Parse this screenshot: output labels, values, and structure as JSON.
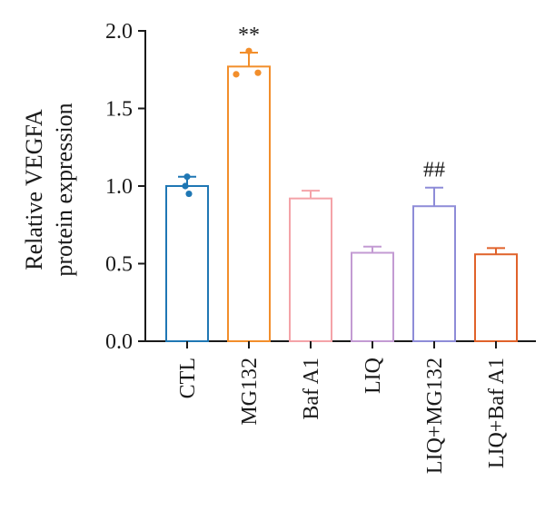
{
  "chart_data": {
    "type": "bar",
    "ylabel_lines": [
      "Relative VEGFA",
      "protein expression"
    ],
    "ylim": [
      0,
      2.0
    ],
    "yticks": [
      {
        "value": 0.0,
        "label": "0.0"
      },
      {
        "value": 0.5,
        "label": "0.5"
      },
      {
        "value": 1.0,
        "label": "1.0"
      },
      {
        "value": 1.5,
        "label": "1.5"
      },
      {
        "value": 2.0,
        "label": "2.0"
      }
    ],
    "grid": false,
    "bars": [
      {
        "category": "CTL",
        "value": 1.0,
        "error": 0.06,
        "color": "#1f77b4",
        "points": [
          1.06,
          1.0,
          0.95
        ],
        "significance": ""
      },
      {
        "category": "MG132",
        "value": 1.77,
        "error": 0.09,
        "color": "#f28e2b",
        "points": [
          1.87,
          1.72,
          1.73
        ],
        "significance": "**"
      },
      {
        "category": "Baf A1",
        "value": 0.92,
        "error": 0.05,
        "color": "#f4a3a8",
        "points": [],
        "significance": ""
      },
      {
        "category": "LIQ",
        "value": 0.57,
        "error": 0.04,
        "color": "#c39bd3",
        "points": [],
        "significance": ""
      },
      {
        "category": "LIQ+MG132",
        "value": 0.87,
        "error": 0.12,
        "color": "#8e8cd8",
        "points": [],
        "significance": "##"
      },
      {
        "category": "LIQ+Baf A1",
        "value": 0.56,
        "error": 0.04,
        "color": "#e0622a",
        "points": [],
        "significance": ""
      }
    ]
  }
}
